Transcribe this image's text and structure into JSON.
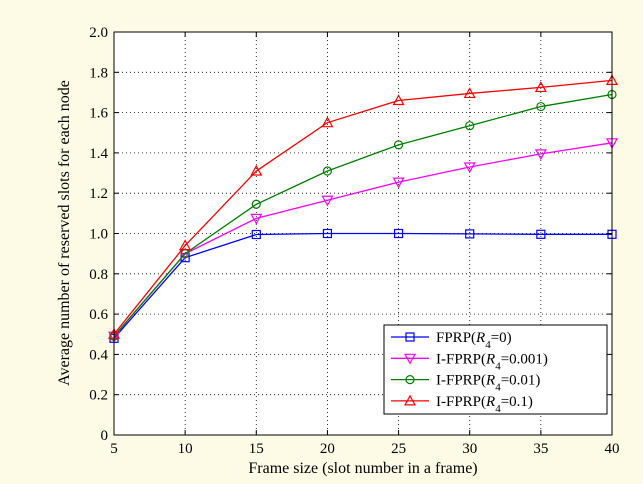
{
  "chart_data": {
    "type": "line",
    "xlabel": "Frame size (slot number in a frame)",
    "ylabel": "Average number of reserved slots for each node",
    "x": [
      5,
      10,
      15,
      20,
      25,
      30,
      35,
      40
    ],
    "xlim": [
      5,
      40
    ],
    "ylim": [
      0,
      2.0
    ],
    "xticks": [
      "5",
      "10",
      "15",
      "20",
      "25",
      "30",
      "35",
      "40"
    ],
    "yticks": [
      "0",
      "0.2",
      "0.4",
      "0.6",
      "0.8",
      "1.0",
      "1.2",
      "1.4",
      "1.6",
      "1.8",
      "2.0"
    ],
    "grid": true,
    "legend_position": "bottom-right",
    "series": [
      {
        "name": "FPRP(R4=0)",
        "legend": {
          "pre": "FPRP(",
          "italic": "R",
          "sub": "4",
          "post": "=0)"
        },
        "color": "#0000ff",
        "marker": "square",
        "values": [
          0.48,
          0.88,
          0.995,
          1.0,
          1.0,
          0.998,
          0.996,
          0.996
        ]
      },
      {
        "name": "I-FPRP(R4=0.001)",
        "legend": {
          "pre": "I-FPRP(",
          "italic": "R",
          "sub": "4",
          "post": "=0.001)"
        },
        "color": "#ff00ff",
        "marker": "triangle-down",
        "values": [
          0.49,
          0.9,
          1.075,
          1.165,
          1.255,
          1.33,
          1.395,
          1.45
        ]
      },
      {
        "name": "I-FPRP(R4=0.01)",
        "legend": {
          "pre": "I-FPRP(",
          "italic": "R",
          "sub": "4",
          "post": "=0.01)"
        },
        "color": "#008000",
        "marker": "circle",
        "values": [
          0.49,
          0.9,
          1.145,
          1.31,
          1.44,
          1.535,
          1.63,
          1.69
        ]
      },
      {
        "name": "I-FPRP(R4=0.1)",
        "legend": {
          "pre": "I-FPRP(",
          "italic": "R",
          "sub": "4",
          "post": "=0.1)"
        },
        "color": "#ff0000",
        "marker": "triangle-up",
        "values": [
          0.5,
          0.94,
          1.31,
          1.55,
          1.66,
          1.695,
          1.725,
          1.76
        ]
      }
    ]
  }
}
